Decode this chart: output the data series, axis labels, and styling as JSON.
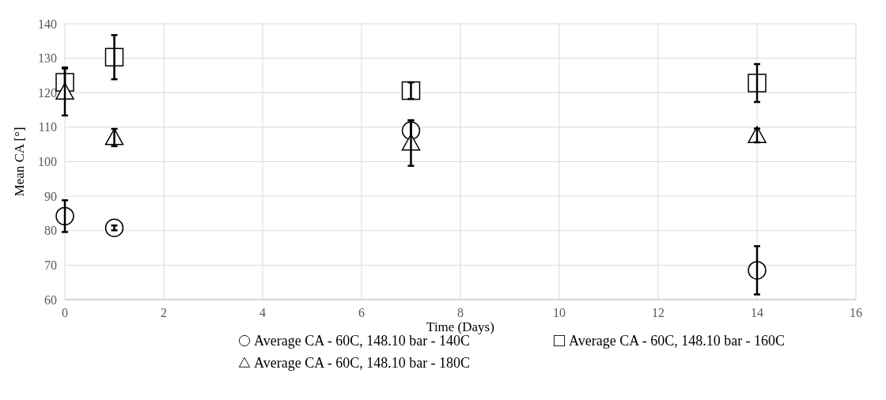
{
  "chart_data": {
    "type": "scatter",
    "xlabel": "Time (Days)",
    "ylabel": "Mean CA [°]",
    "xlim": [
      0,
      16
    ],
    "xticks": [
      0,
      2,
      4,
      6,
      8,
      10,
      12,
      14,
      16
    ],
    "ylim": [
      60,
      140
    ],
    "yticks": [
      60,
      70,
      80,
      90,
      100,
      110,
      120,
      130,
      140
    ],
    "grid": true,
    "legend": "bottom",
    "series": [
      {
        "name": "Average CA - 60C, 148.10 bar - 140C",
        "color": "#000000",
        "marker": "circle",
        "x": [
          0,
          1,
          7,
          14
        ],
        "values": [
          84.2,
          80.8,
          109,
          68.5
        ],
        "errors": [
          4.6,
          0.7,
          3,
          7
        ]
      },
      {
        "name": "Average CA - 60C, 148.10 bar - 160C",
        "color": "#000000",
        "marker": "square",
        "x": [
          0,
          1,
          7,
          14
        ],
        "values": [
          123,
          130.3,
          120.6,
          122.8
        ],
        "errors": [
          4.3,
          6.4,
          2.4,
          5.5
        ]
      },
      {
        "name": "Average CA - 60C, 148.10 bar - 180C",
        "color": "#000000",
        "marker": "triangle",
        "x": [
          0,
          1,
          7,
          14
        ],
        "values": [
          120.2,
          107,
          105.4,
          107.6
        ],
        "errors": [
          6.8,
          2.5,
          6.6,
          2
        ]
      }
    ]
  }
}
